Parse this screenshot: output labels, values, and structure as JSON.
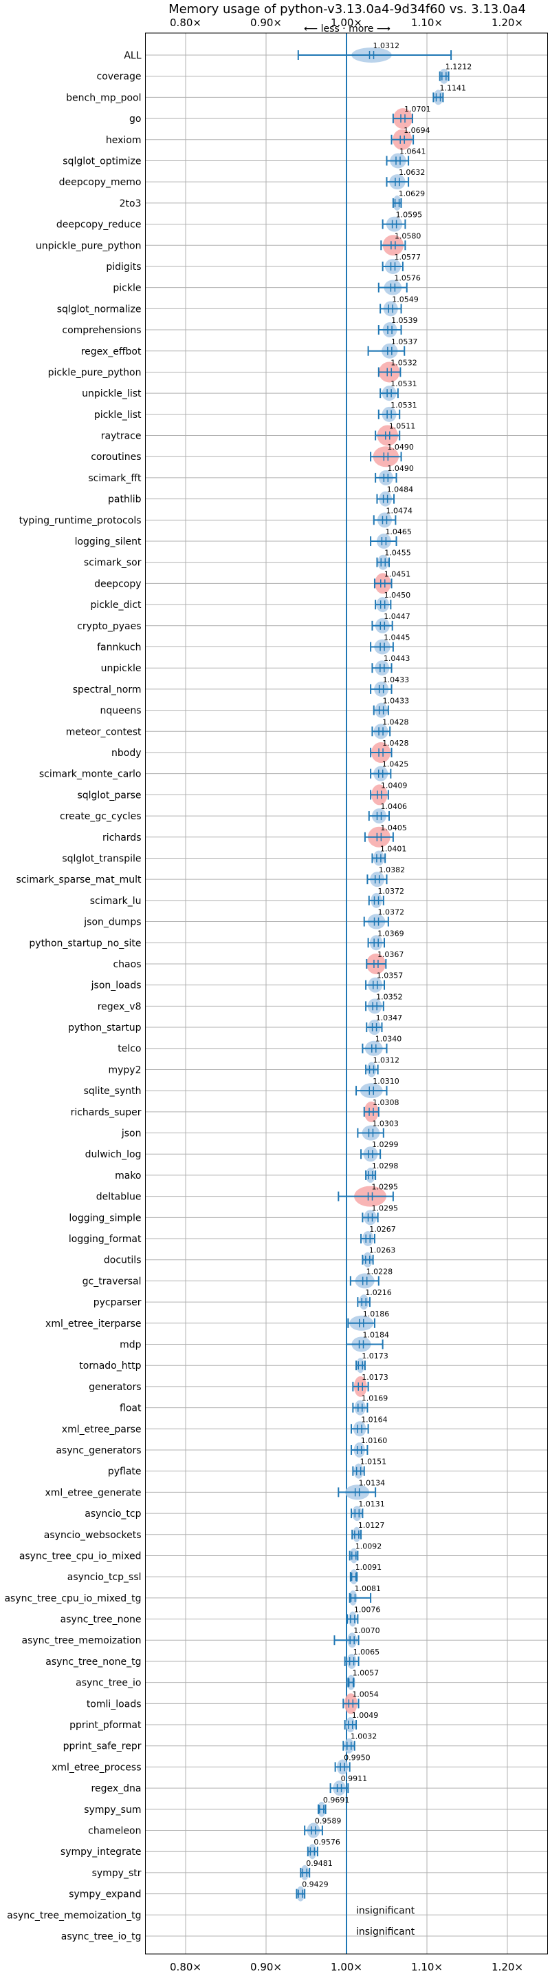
{
  "colors": {
    "accent": "#1f77b4",
    "body": "#aecbe8",
    "worse": "#f7a8a8",
    "grid": "#b0b0b0"
  },
  "chart_data": {
    "type": "violin",
    "title": "Memory usage of python-v3.13.0a4-9d34f60 vs. 3.13.0a4",
    "subtitle": "⟵ less · more ⟶",
    "xlim": [
      0.75,
      1.25
    ],
    "x_ticks": [
      0.8,
      0.9,
      1.0,
      1.1,
      1.2
    ],
    "x_tick_labels": [
      "0.80×",
      "0.90×",
      "1.00×",
      "1.10×",
      "1.20×"
    ],
    "reference_line": 1.0,
    "grid": true,
    "insignificant_label": "insignificant",
    "benchmarks": [
      {
        "name": "ALL",
        "value": 1.0312,
        "label": "1.0312",
        "lo": 0.94,
        "hi": 1.13,
        "spread": 0.025,
        "highlight": false
      },
      {
        "name": "coverage",
        "value": 1.1212,
        "label": "1.1212",
        "lo": 1.116,
        "hi": 1.127,
        "spread": 0.006,
        "highlight": false
      },
      {
        "name": "bench_mp_pool",
        "value": 1.1141,
        "label": "1.1141",
        "lo": 1.108,
        "hi": 1.12,
        "spread": 0.006,
        "highlight": false
      },
      {
        "name": "go",
        "value": 1.0701,
        "label": "1.0701",
        "lo": 1.058,
        "hi": 1.082,
        "spread": 0.012,
        "highlight": true
      },
      {
        "name": "hexiom",
        "value": 1.0694,
        "label": "1.0694",
        "lo": 1.056,
        "hi": 1.083,
        "spread": 0.012,
        "highlight": true
      },
      {
        "name": "sqlglot_optimize",
        "value": 1.0641,
        "label": "1.0641",
        "lo": 1.05,
        "hi": 1.077,
        "spread": 0.01,
        "highlight": false
      },
      {
        "name": "deepcopy_memo",
        "value": 1.0632,
        "label": "1.0632",
        "lo": 1.05,
        "hi": 1.077,
        "spread": 0.01,
        "highlight": false
      },
      {
        "name": "2to3",
        "value": 1.0629,
        "label": "1.0629",
        "lo": 1.058,
        "hi": 1.068,
        "spread": 0.005,
        "highlight": false
      },
      {
        "name": "deepcopy_reduce",
        "value": 1.0595,
        "label": "1.0595",
        "lo": 1.045,
        "hi": 1.073,
        "spread": 0.01,
        "highlight": false
      },
      {
        "name": "unpickle_pure_python",
        "value": 1.058,
        "label": "1.0580",
        "lo": 1.043,
        "hi": 1.073,
        "spread": 0.013,
        "highlight": true
      },
      {
        "name": "pidigits",
        "value": 1.0577,
        "label": "1.0577",
        "lo": 1.045,
        "hi": 1.07,
        "spread": 0.01,
        "highlight": false
      },
      {
        "name": "pickle",
        "value": 1.0576,
        "label": "1.0576",
        "lo": 1.04,
        "hi": 1.075,
        "spread": 0.011,
        "highlight": false
      },
      {
        "name": "sqlglot_normalize",
        "value": 1.0549,
        "label": "1.0549",
        "lo": 1.042,
        "hi": 1.068,
        "spread": 0.009,
        "highlight": false
      },
      {
        "name": "comprehensions",
        "value": 1.0539,
        "label": "1.0539",
        "lo": 1.04,
        "hi": 1.068,
        "spread": 0.009,
        "highlight": false
      },
      {
        "name": "regex_effbot",
        "value": 1.0537,
        "label": "1.0537",
        "lo": 1.027,
        "hi": 1.072,
        "spread": 0.01,
        "highlight": false
      },
      {
        "name": "pickle_pure_python",
        "value": 1.0532,
        "label": "1.0532",
        "lo": 1.04,
        "hi": 1.067,
        "spread": 0.013,
        "highlight": true
      },
      {
        "name": "unpickle_list",
        "value": 1.0531,
        "label": "1.0531",
        "lo": 1.042,
        "hi": 1.064,
        "spread": 0.009,
        "highlight": false
      },
      {
        "name": "pickle_list",
        "value": 1.0531,
        "label": "1.0531",
        "lo": 1.04,
        "hi": 1.066,
        "spread": 0.009,
        "highlight": false
      },
      {
        "name": "raytrace",
        "value": 1.0511,
        "label": "1.0511",
        "lo": 1.036,
        "hi": 1.066,
        "spread": 0.013,
        "highlight": true
      },
      {
        "name": "coroutines",
        "value": 1.049,
        "label": "1.0490",
        "lo": 1.03,
        "hi": 1.068,
        "spread": 0.016,
        "highlight": true
      },
      {
        "name": "scimark_fft",
        "value": 1.049,
        "label": "1.0490",
        "lo": 1.036,
        "hi": 1.062,
        "spread": 0.009,
        "highlight": false
      },
      {
        "name": "pathlib",
        "value": 1.0484,
        "label": "1.0484",
        "lo": 1.038,
        "hi": 1.059,
        "spread": 0.008,
        "highlight": false
      },
      {
        "name": "typing_runtime_protocols",
        "value": 1.0474,
        "label": "1.0474",
        "lo": 1.034,
        "hi": 1.061,
        "spread": 0.009,
        "highlight": false
      },
      {
        "name": "logging_silent",
        "value": 1.0465,
        "label": "1.0465",
        "lo": 1.03,
        "hi": 1.062,
        "spread": 0.009,
        "highlight": false
      },
      {
        "name": "scimark_sor",
        "value": 1.0455,
        "label": "1.0455",
        "lo": 1.038,
        "hi": 1.053,
        "spread": 0.007,
        "highlight": false
      },
      {
        "name": "deepcopy",
        "value": 1.0451,
        "label": "1.0451",
        "lo": 1.035,
        "hi": 1.056,
        "spread": 0.01,
        "highlight": true
      },
      {
        "name": "pickle_dict",
        "value": 1.045,
        "label": "1.0450",
        "lo": 1.036,
        "hi": 1.055,
        "spread": 0.008,
        "highlight": false
      },
      {
        "name": "crypto_pyaes",
        "value": 1.0447,
        "label": "1.0447",
        "lo": 1.032,
        "hi": 1.057,
        "spread": 0.009,
        "highlight": false
      },
      {
        "name": "fannkuch",
        "value": 1.0445,
        "label": "1.0445",
        "lo": 1.03,
        "hi": 1.058,
        "spread": 0.01,
        "highlight": false
      },
      {
        "name": "unpickle",
        "value": 1.0443,
        "label": "1.0443",
        "lo": 1.032,
        "hi": 1.056,
        "spread": 0.009,
        "highlight": false
      },
      {
        "name": "spectral_norm",
        "value": 1.0433,
        "label": "1.0433",
        "lo": 1.03,
        "hi": 1.056,
        "spread": 0.009,
        "highlight": false
      },
      {
        "name": "nqueens",
        "value": 1.0433,
        "label": "1.0433",
        "lo": 1.034,
        "hi": 1.052,
        "spread": 0.008,
        "highlight": false
      },
      {
        "name": "meteor_contest",
        "value": 1.0428,
        "label": "1.0428",
        "lo": 1.032,
        "hi": 1.054,
        "spread": 0.009,
        "highlight": false
      },
      {
        "name": "nbody",
        "value": 1.0428,
        "label": "1.0428",
        "lo": 1.03,
        "hi": 1.056,
        "spread": 0.012,
        "highlight": true
      },
      {
        "name": "scimark_monte_carlo",
        "value": 1.0425,
        "label": "1.0425",
        "lo": 1.03,
        "hi": 1.055,
        "spread": 0.009,
        "highlight": false
      },
      {
        "name": "sqlglot_parse",
        "value": 1.0409,
        "label": "1.0409",
        "lo": 1.03,
        "hi": 1.052,
        "spread": 0.01,
        "highlight": true
      },
      {
        "name": "create_gc_cycles",
        "value": 1.0406,
        "label": "1.0406",
        "lo": 1.028,
        "hi": 1.053,
        "spread": 0.009,
        "highlight": false
      },
      {
        "name": "richards",
        "value": 1.0405,
        "label": "1.0405",
        "lo": 1.023,
        "hi": 1.058,
        "spread": 0.014,
        "highlight": true
      },
      {
        "name": "sqlglot_transpile",
        "value": 1.0401,
        "label": "1.0401",
        "lo": 1.032,
        "hi": 1.048,
        "spread": 0.007,
        "highlight": false
      },
      {
        "name": "scimark_sparse_mat_mult",
        "value": 1.0382,
        "label": "1.0382",
        "lo": 1.026,
        "hi": 1.05,
        "spread": 0.009,
        "highlight": false
      },
      {
        "name": "scimark_lu",
        "value": 1.0372,
        "label": "1.0372",
        "lo": 1.028,
        "hi": 1.046,
        "spread": 0.007,
        "highlight": false
      },
      {
        "name": "json_dumps",
        "value": 1.0372,
        "label": "1.0372",
        "lo": 1.022,
        "hi": 1.052,
        "spread": 0.011,
        "highlight": false
      },
      {
        "name": "python_startup_no_site",
        "value": 1.0369,
        "label": "1.0369",
        "lo": 1.027,
        "hi": 1.047,
        "spread": 0.008,
        "highlight": false
      },
      {
        "name": "chaos",
        "value": 1.0367,
        "label": "1.0367",
        "lo": 1.025,
        "hi": 1.049,
        "spread": 0.012,
        "highlight": true
      },
      {
        "name": "json_loads",
        "value": 1.0357,
        "label": "1.0357",
        "lo": 1.024,
        "hi": 1.047,
        "spread": 0.009,
        "highlight": false
      },
      {
        "name": "regex_v8",
        "value": 1.0352,
        "label": "1.0352",
        "lo": 1.024,
        "hi": 1.046,
        "spread": 0.009,
        "highlight": false
      },
      {
        "name": "python_startup",
        "value": 1.0347,
        "label": "1.0347",
        "lo": 1.025,
        "hi": 1.044,
        "spread": 0.008,
        "highlight": false
      },
      {
        "name": "telco",
        "value": 1.034,
        "label": "1.0340",
        "lo": 1.02,
        "hi": 1.05,
        "spread": 0.011,
        "highlight": false
      },
      {
        "name": "mypy2",
        "value": 1.0312,
        "label": "1.0312",
        "lo": 1.024,
        "hi": 1.039,
        "spread": 0.006,
        "highlight": false
      },
      {
        "name": "sqlite_synth",
        "value": 1.031,
        "label": "1.0310",
        "lo": 1.012,
        "hi": 1.05,
        "spread": 0.014,
        "highlight": false
      },
      {
        "name": "richards_super",
        "value": 1.0308,
        "label": "1.0308",
        "lo": 1.022,
        "hi": 1.04,
        "spread": 0.009,
        "highlight": true
      },
      {
        "name": "json",
        "value": 1.0303,
        "label": "1.0303",
        "lo": 1.014,
        "hi": 1.046,
        "spread": 0.011,
        "highlight": false
      },
      {
        "name": "dulwich_log",
        "value": 1.0299,
        "label": "1.0299",
        "lo": 1.018,
        "hi": 1.042,
        "spread": 0.009,
        "highlight": false
      },
      {
        "name": "mako",
        "value": 1.0298,
        "label": "1.0298",
        "lo": 1.024,
        "hi": 1.036,
        "spread": 0.006,
        "highlight": false
      },
      {
        "name": "deltablue",
        "value": 1.0295,
        "label": "1.0295",
        "lo": 0.99,
        "hi": 1.058,
        "spread": 0.02,
        "highlight": true
      },
      {
        "name": "logging_simple",
        "value": 1.0295,
        "label": "1.0295",
        "lo": 1.02,
        "hi": 1.039,
        "spread": 0.008,
        "highlight": false
      },
      {
        "name": "logging_format",
        "value": 1.0267,
        "label": "1.0267",
        "lo": 1.018,
        "hi": 1.035,
        "spread": 0.007,
        "highlight": false
      },
      {
        "name": "docutils",
        "value": 1.0263,
        "label": "1.0263",
        "lo": 1.02,
        "hi": 1.033,
        "spread": 0.006,
        "highlight": false
      },
      {
        "name": "gc_traversal",
        "value": 1.0228,
        "label": "1.0228",
        "lo": 1.005,
        "hi": 1.04,
        "spread": 0.012,
        "highlight": false
      },
      {
        "name": "pycparser",
        "value": 1.0216,
        "label": "1.0216",
        "lo": 1.014,
        "hi": 1.029,
        "spread": 0.006,
        "highlight": false
      },
      {
        "name": "xml_etree_iterparse",
        "value": 1.0186,
        "label": "1.0186",
        "lo": 1.002,
        "hi": 1.035,
        "spread": 0.015,
        "highlight": false
      },
      {
        "name": "mdp",
        "value": 1.0184,
        "label": "1.0184",
        "lo": 1.0,
        "hi": 1.045,
        "spread": 0.012,
        "highlight": false
      },
      {
        "name": "tornado_http",
        "value": 1.0173,
        "label": "1.0173",
        "lo": 1.012,
        "hi": 1.023,
        "spread": 0.005,
        "highlight": false
      },
      {
        "name": "generators",
        "value": 1.0173,
        "label": "1.0173",
        "lo": 1.008,
        "hi": 1.027,
        "spread": 0.008,
        "highlight": true
      },
      {
        "name": "float",
        "value": 1.0169,
        "label": "1.0169",
        "lo": 1.008,
        "hi": 1.026,
        "spread": 0.007,
        "highlight": false
      },
      {
        "name": "xml_etree_parse",
        "value": 1.0164,
        "label": "1.0164",
        "lo": 1.006,
        "hi": 1.027,
        "spread": 0.008,
        "highlight": false
      },
      {
        "name": "async_generators",
        "value": 1.016,
        "label": "1.0160",
        "lo": 1.006,
        "hi": 1.026,
        "spread": 0.007,
        "highlight": false
      },
      {
        "name": "pyflate",
        "value": 1.0151,
        "label": "1.0151",
        "lo": 1.008,
        "hi": 1.022,
        "spread": 0.006,
        "highlight": false
      },
      {
        "name": "xml_etree_generate",
        "value": 1.0134,
        "label": "1.0134",
        "lo": 0.99,
        "hi": 1.036,
        "spread": 0.015,
        "highlight": false
      },
      {
        "name": "asyncio_tcp",
        "value": 1.0131,
        "label": "1.0131",
        "lo": 1.006,
        "hi": 1.02,
        "spread": 0.006,
        "highlight": false
      },
      {
        "name": "asyncio_websockets",
        "value": 1.0127,
        "label": "1.0127",
        "lo": 1.007,
        "hi": 1.018,
        "spread": 0.005,
        "highlight": false
      },
      {
        "name": "async_tree_cpu_io_mixed",
        "value": 1.0092,
        "label": "1.0092",
        "lo": 1.004,
        "hi": 1.014,
        "spread": 0.005,
        "highlight": false
      },
      {
        "name": "asyncio_tcp_ssl",
        "value": 1.0091,
        "label": "1.0091",
        "lo": 1.005,
        "hi": 1.013,
        "spread": 0.004,
        "highlight": false
      },
      {
        "name": "async_tree_cpu_io_mixed_tg",
        "value": 1.0081,
        "label": "1.0081",
        "lo": 1.004,
        "hi": 1.03,
        "spread": 0.005,
        "highlight": false
      },
      {
        "name": "async_tree_none",
        "value": 1.0076,
        "label": "1.0076",
        "lo": 1.001,
        "hi": 1.014,
        "spread": 0.005,
        "highlight": false
      },
      {
        "name": "async_tree_memoization",
        "value": 1.007,
        "label": "1.0070",
        "lo": 0.985,
        "hi": 1.015,
        "spread": 0.006,
        "highlight": false
      },
      {
        "name": "async_tree_none_tg",
        "value": 1.0065,
        "label": "1.0065",
        "lo": 0.998,
        "hi": 1.015,
        "spread": 0.006,
        "highlight": false
      },
      {
        "name": "async_tree_io",
        "value": 1.0057,
        "label": "1.0057",
        "lo": 1.002,
        "hi": 1.009,
        "spread": 0.004,
        "highlight": false
      },
      {
        "name": "tomli_loads",
        "value": 1.0054,
        "label": "1.0054",
        "lo": 0.996,
        "hi": 1.015,
        "spread": 0.008,
        "highlight": true
      },
      {
        "name": "pprint_pformat",
        "value": 1.0049,
        "label": "1.0049",
        "lo": 0.998,
        "hi": 1.012,
        "spread": 0.006,
        "highlight": false
      },
      {
        "name": "pprint_safe_repr",
        "value": 1.0032,
        "label": "1.0032",
        "lo": 0.996,
        "hi": 1.01,
        "spread": 0.006,
        "highlight": false
      },
      {
        "name": "xml_etree_process",
        "value": 0.995,
        "label": "0.9950",
        "lo": 0.986,
        "hi": 1.004,
        "spread": 0.007,
        "highlight": false
      },
      {
        "name": "regex_dna",
        "value": 0.9911,
        "label": "0.9911",
        "lo": 0.98,
        "hi": 1.002,
        "spread": 0.008,
        "highlight": false
      },
      {
        "name": "sympy_sum",
        "value": 0.9691,
        "label": "0.9691",
        "lo": 0.965,
        "hi": 0.974,
        "spread": 0.004,
        "highlight": false
      },
      {
        "name": "chameleon",
        "value": 0.9589,
        "label": "0.9589",
        "lo": 0.948,
        "hi": 0.97,
        "spread": 0.008,
        "highlight": false
      },
      {
        "name": "sympy_integrate",
        "value": 0.9576,
        "label": "0.9576",
        "lo": 0.952,
        "hi": 0.964,
        "spread": 0.005,
        "highlight": false
      },
      {
        "name": "sympy_str",
        "value": 0.9481,
        "label": "0.9481",
        "lo": 0.943,
        "hi": 0.954,
        "spread": 0.005,
        "highlight": false
      },
      {
        "name": "sympy_expand",
        "value": 0.9429,
        "label": "0.9429",
        "lo": 0.938,
        "hi": 0.948,
        "spread": 0.005,
        "highlight": false
      },
      {
        "name": "async_tree_memoization_tg",
        "value": null,
        "label": "",
        "insignificant": true
      },
      {
        "name": "async_tree_io_tg",
        "value": null,
        "label": "",
        "insignificant": true
      }
    ]
  }
}
